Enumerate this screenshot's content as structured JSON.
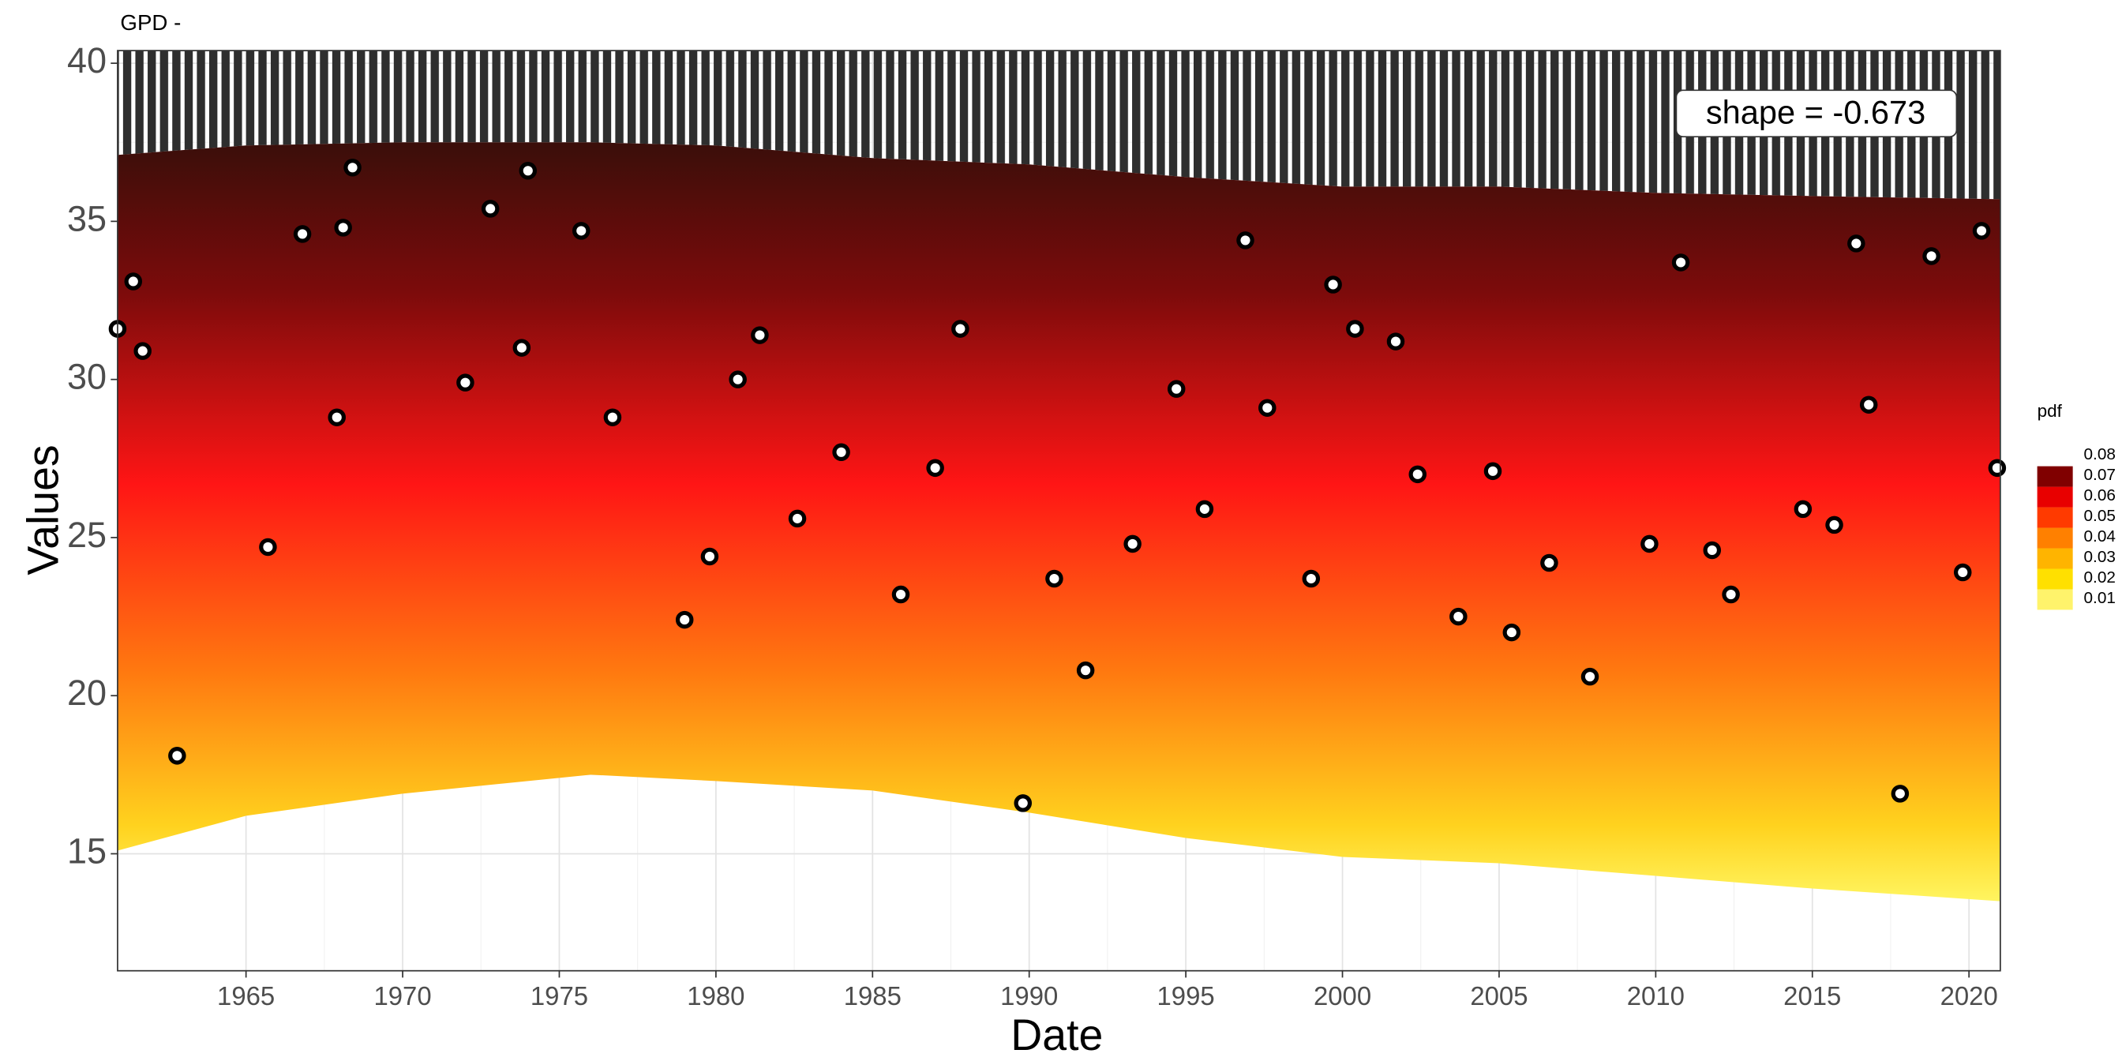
{
  "chart_data": {
    "type": "scatter",
    "title": "GPD -",
    "annotation": "shape = -0.673",
    "x_label": "Date",
    "y_label": "Values",
    "xlim": [
      1960.9,
      2021.0
    ],
    "ylim": [
      11.3,
      40.4
    ],
    "xticks": [
      1965,
      1970,
      1975,
      1980,
      1985,
      1990,
      1995,
      2000,
      2005,
      2010,
      2015,
      2020
    ],
    "yticks": [
      15,
      20,
      25,
      30,
      35,
      40
    ],
    "grid": true,
    "x": [
      1960.9,
      1961.4,
      1961.7,
      1962.8,
      1965.7,
      1966.8,
      1967.9,
      1968.1,
      1968.4,
      1972.0,
      1972.8,
      1973.8,
      1974.0,
      1975.7,
      1976.7,
      1979.0,
      1979.8,
      1980.7,
      1981.4,
      1982.6,
      1984.0,
      1985.9,
      1987.0,
      1987.8,
      1989.8,
      1990.8,
      1991.8,
      1993.3,
      1994.7,
      1995.6,
      1996.9,
      1997.6,
      1999.0,
      1999.7,
      2000.4,
      2001.7,
      2002.4,
      2003.7,
      2004.8,
      2005.4,
      2006.6,
      2007.9,
      2009.8,
      2010.8,
      2011.8,
      2012.4,
      2014.7,
      2015.7,
      2016.4,
      2016.8,
      2017.8,
      2018.8,
      2019.8,
      2020.4,
      2020.9
    ],
    "values": [
      31.6,
      33.1,
      30.9,
      18.1,
      24.7,
      34.6,
      28.8,
      34.8,
      36.7,
      29.9,
      35.4,
      31.0,
      36.6,
      34.7,
      28.8,
      22.4,
      24.4,
      30.0,
      31.4,
      25.6,
      27.7,
      23.2,
      27.2,
      31.6,
      16.6,
      23.7,
      20.8,
      24.8,
      29.7,
      25.9,
      34.4,
      29.1,
      23.7,
      33.0,
      31.6,
      31.2,
      27.0,
      22.5,
      27.1,
      22.0,
      24.2,
      20.6,
      24.8,
      33.7,
      24.6,
      23.2,
      25.9,
      25.4,
      34.3,
      29.2,
      16.9,
      33.9,
      23.9,
      34.7,
      27.2
    ],
    "density": {
      "x": [
        1960.9,
        1965,
        1970,
        1976,
        1980,
        1985,
        1990,
        1995,
        2000,
        2005,
        2010,
        2015,
        2021.0
      ],
      "upper": [
        37.1,
        37.4,
        37.5,
        37.5,
        37.4,
        37.0,
        36.8,
        36.4,
        36.1,
        36.1,
        35.9,
        35.8,
        35.7
      ],
      "lower": [
        15.1,
        16.2,
        16.9,
        17.5,
        17.3,
        17.0,
        16.3,
        15.5,
        14.9,
        14.7,
        14.3,
        13.9,
        13.5
      ]
    },
    "legend": {
      "title": "pdf",
      "ticks": [
        0.01,
        0.02,
        0.03,
        0.04,
        0.05,
        0.06,
        0.07,
        0.08
      ],
      "colors": [
        "#fff36b",
        "#ffe000",
        "#ffb400",
        "#ff8000",
        "#ff3a00",
        "#e80000",
        "#800000"
      ]
    }
  }
}
